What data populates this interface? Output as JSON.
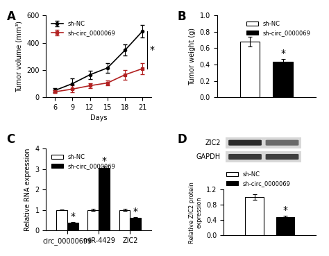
{
  "chart_data": [
    {
      "type": "line",
      "panel": "A",
      "x": [
        6,
        9,
        12,
        15,
        18,
        21
      ],
      "series": [
        {
          "name": "sh-NC",
          "color": "#000000",
          "marker": "o",
          "values": [
            50,
            100,
            165,
            215,
            345,
            485
          ],
          "errors": [
            15,
            40,
            30,
            35,
            40,
            45
          ]
        },
        {
          "name": "sh-circ_0000069",
          "color": "#b22222",
          "marker": "s",
          "values": [
            40,
            60,
            85,
            105,
            165,
            210
          ],
          "errors": [
            10,
            25,
            20,
            20,
            35,
            40
          ]
        }
      ],
      "x_label": "Days",
      "y_label": "Tumor volume (mm³)",
      "xlim": [
        4.5,
        22.5
      ],
      "xticks": [
        6,
        9,
        12,
        15,
        18,
        21
      ],
      "ylim": [
        0,
        600
      ],
      "yticks": [
        0,
        200,
        400,
        600
      ],
      "legend": "upper left",
      "annotations": [
        {
          "text": "*",
          "x": 21
        }
      ]
    },
    {
      "type": "bar",
      "panel": "B",
      "categories": [
        null
      ],
      "series": [
        {
          "name": "sh-NC",
          "color": "#ffffff",
          "values": [
            0.68
          ],
          "errors": [
            0.06
          ]
        },
        {
          "name": "sh-circ_0000069",
          "color": "#000000",
          "values": [
            0.43
          ],
          "errors": [
            0.04
          ]
        }
      ],
      "y_label": "Tumor weight (g)",
      "ylim": [
        0,
        1.0
      ],
      "yticks": [
        {
          "value": 0,
          "label": "0.0"
        },
        0.2,
        0.4,
        0.6,
        0.8,
        {
          "value": 1,
          "label": "1.0"
        }
      ],
      "legend": "upper right",
      "tick_labels": "y",
      "annotations": [
        {
          "text": "*",
          "series": "sh-circ_0000069",
          "index": 0
        }
      ]
    },
    {
      "type": "bar",
      "panel": "C",
      "categories": [
        "circ_00000699",
        "miR-4429",
        "ZIC2"
      ],
      "series": [
        {
          "name": "sh-NC",
          "color": "#ffffff",
          "values": [
            1.0,
            1.0,
            1.0
          ],
          "errors": [
            0.03,
            0.06,
            0.05
          ]
        },
        {
          "name": "sh-circ_0000069",
          "color": "#000000",
          "values": [
            0.38,
            3.05,
            0.6
          ],
          "errors": [
            0.03,
            0.08,
            0.04
          ]
        }
      ],
      "y_label": "Relative RNA expression",
      "ylim": [
        0,
        4
      ],
      "yticks": [
        0,
        1,
        2,
        3,
        4
      ],
      "legend": "upper left",
      "annotations": [
        {
          "text": "*",
          "series": "sh-circ_0000069",
          "index": 0
        },
        {
          "text": "*",
          "series": "sh-circ_0000069",
          "index": 1
        },
        {
          "text": "*",
          "series": "sh-circ_0000069",
          "index": 2
        }
      ]
    },
    {
      "type": "bar",
      "panel": "D",
      "blot_labels": [
        "ZIC2",
        "GAPDH"
      ],
      "categories": [
        null
      ],
      "series": [
        {
          "name": "sh-NC",
          "color": "#ffffff",
          "values": [
            1.0
          ],
          "errors": [
            0.07
          ]
        },
        {
          "name": "sh-circ_0000069",
          "color": "#000000",
          "values": [
            0.47
          ],
          "errors": [
            0.05
          ]
        }
      ],
      "y_label": "Relative ZIC2 protein expression",
      "ylim": [
        0,
        1.2
      ],
      "yticks": [
        {
          "value": 0,
          "label": "0.0"
        },
        0.4,
        0.8,
        1.2
      ],
      "legend": "upper left",
      "tick_labels": "y",
      "annotations": [
        {
          "text": "*",
          "series": "sh-circ_0000069",
          "index": 0
        }
      ]
    }
  ]
}
